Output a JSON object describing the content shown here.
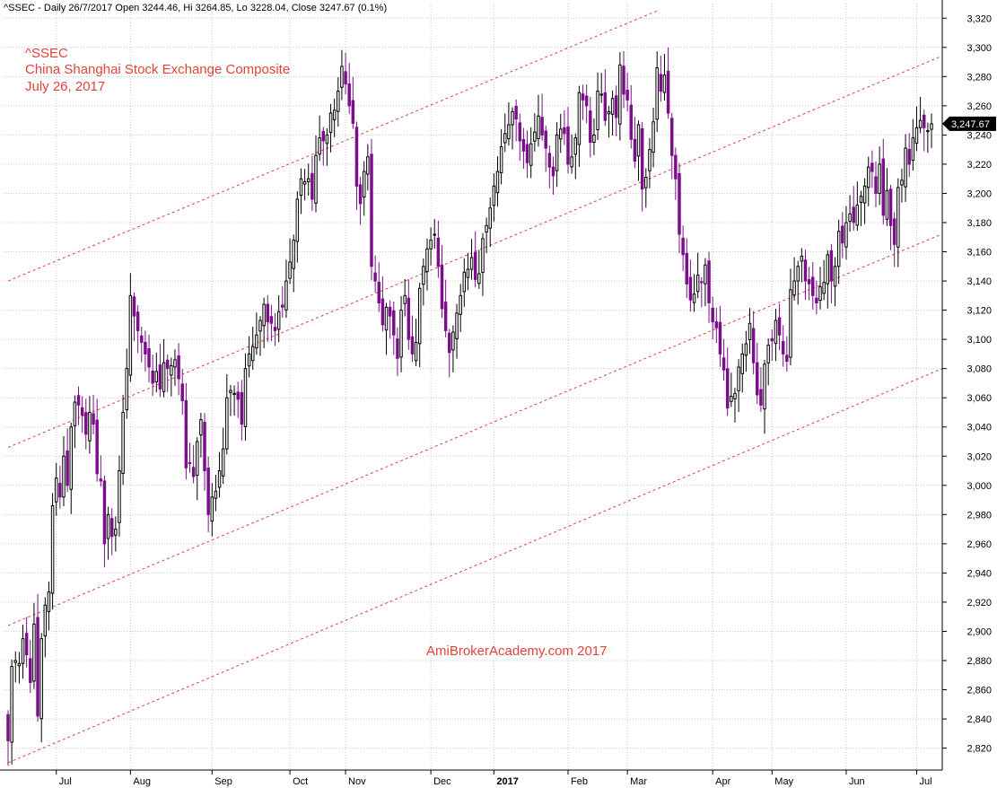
{
  "header": {
    "text": "^SSEC - Daily 26/7/2017 Open 3244.46, Hi 3264.85, Lo 3228.04, Close 3247.67 (0.1%)"
  },
  "chart_data": {
    "type": "candlestick",
    "title_lines": [
      "^SSEC",
      "China Shanghai Stock Exchange Composite",
      "July 26, 2017"
    ],
    "watermark": "AmiBrokerAcademy.com  2017",
    "last_price_label": "3,247.67",
    "ylim": [
      2805,
      3330
    ],
    "y_ticks": [
      2820,
      2840,
      2860,
      2880,
      2900,
      2920,
      2940,
      2960,
      2980,
      3000,
      3020,
      3040,
      3060,
      3080,
      3100,
      3120,
      3140,
      3160,
      3180,
      3200,
      3220,
      3240,
      3260,
      3280,
      3300,
      3320
    ],
    "x_ticks": [
      {
        "label": "Jul",
        "bar": 13
      },
      {
        "label": "Aug",
        "bar": 33
      },
      {
        "label": "Sep",
        "bar": 55
      },
      {
        "label": "Oct",
        "bar": 76
      },
      {
        "label": "Nov",
        "bar": 91
      },
      {
        "label": "Dec",
        "bar": 114
      },
      {
        "label": "2017",
        "bar": 131,
        "bold": true
      },
      {
        "label": "Feb",
        "bar": 151
      },
      {
        "label": "Mar",
        "bar": 167
      },
      {
        "label": "Apr",
        "bar": 190
      },
      {
        "label": "May",
        "bar": 206
      },
      {
        "label": "Jun",
        "bar": 226
      },
      {
        "label": "Jul",
        "bar": 245
      }
    ],
    "grid": true,
    "colors": {
      "up": "#000000",
      "down": "#7b0f8a",
      "trend": "#e0433a",
      "grid": "#c8c8c8",
      "label_bg": "#000000",
      "label_fg": "#ffffff"
    },
    "trend_lines": [
      {
        "x1": 0,
        "y1": 3140,
        "x2": 175,
        "y2": 3325
      },
      {
        "x1": 0,
        "y1": 3026,
        "x2": 278,
        "y2": 3322
      },
      {
        "x1": 0,
        "y1": 2904,
        "x2": 278,
        "y2": 3200
      },
      {
        "x1": 0,
        "y1": 2810,
        "x2": 278,
        "y2": 3108
      }
    ],
    "closes": [
      2825,
      2876,
      2880,
      2878,
      2895,
      2884,
      2865,
      2905,
      2842,
      2895,
      2918,
      2927,
      2986,
      3005,
      2992,
      3020,
      3000,
      3040,
      3057,
      3055,
      3048,
      3035,
      3050,
      3042,
      3008,
      3003,
      2960,
      2980,
      2965,
      2970,
      3010,
      3050,
      3080,
      3130,
      3116,
      3106,
      3098,
      3090,
      3081,
      3070,
      3078,
      3066,
      3084,
      3080,
      3082,
      3086,
      3073,
      3058,
      3012,
      3015,
      3006,
      3030,
      3045,
      3010,
      2980,
      2992,
      2996,
      3010,
      3025,
      3060,
      3065,
      3063,
      3059,
      3042,
      3080,
      3090,
      3095,
      3103,
      3113,
      3124,
      3112,
      3111,
      3106,
      3119,
      3122,
      3140,
      3153,
      3168,
      3196,
      3210,
      3208,
      3210,
      3196,
      3226,
      3238,
      3236,
      3240,
      3255,
      3257,
      3270,
      3287,
      3275,
      3260,
      3248,
      3205,
      3193,
      3215,
      3225,
      3150,
      3140,
      3125,
      3110,
      3122,
      3116,
      3103,
      3087,
      3120,
      3130,
      3100,
      3090,
      3098,
      3135,
      3150,
      3162,
      3168,
      3172,
      3150,
      3121,
      3106,
      3091,
      3105,
      3118,
      3130,
      3146,
      3148,
      3156,
      3141,
      3145,
      3169,
      3178,
      3190,
      3205,
      3215,
      3232,
      3241,
      3247,
      3256,
      3251,
      3236,
      3229,
      3221,
      3234,
      3242,
      3253,
      3240,
      3231,
      3218,
      3212,
      3240,
      3244,
      3241,
      3220,
      3225,
      3238,
      3269,
      3264,
      3260,
      3235,
      3240,
      3270,
      3268,
      3250,
      3256,
      3265,
      3252,
      3288,
      3268,
      3264,
      3237,
      3222,
      3247,
      3203,
      3211,
      3230,
      3249,
      3286,
      3270,
      3281,
      3255,
      3226,
      3210,
      3172,
      3158,
      3138,
      3127,
      3131,
      3144,
      3139,
      3151,
      3125,
      3112,
      3108,
      3090,
      3079,
      3053,
      3061,
      3063,
      3081,
      3090,
      3097,
      3111,
      3084,
      3062,
      3055,
      3083,
      3096,
      3099,
      3113,
      3103,
      3090,
      3085,
      3134,
      3140,
      3150,
      3157,
      3140,
      3138,
      3130,
      3125,
      3136,
      3139,
      3158,
      3140,
      3150,
      3174,
      3166,
      3180,
      3186,
      3180,
      3192,
      3198,
      3205,
      3218,
      3215,
      3200,
      3220,
      3185,
      3202,
      3178,
      3165,
      3204,
      3209,
      3231,
      3220,
      3238,
      3245,
      3250,
      3245,
      3243,
      3247.67
    ]
  }
}
